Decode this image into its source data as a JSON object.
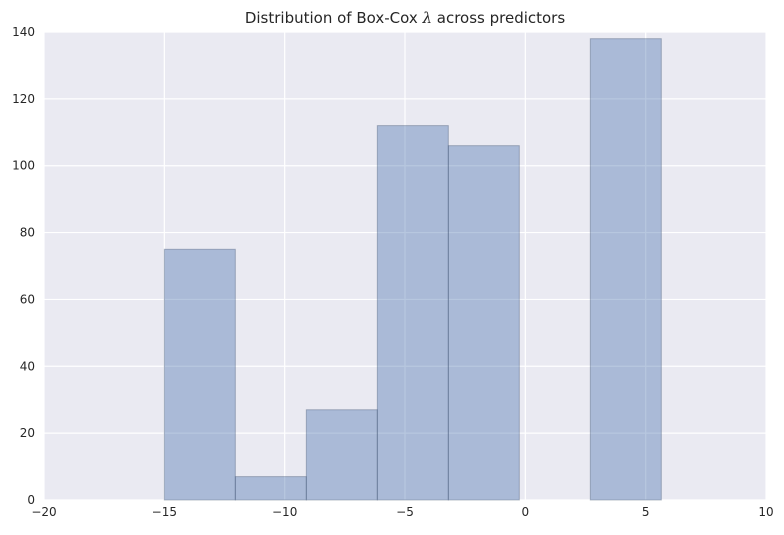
{
  "chart_data": {
    "type": "bar",
    "title_prefix": "Distribution of Box-Cox ",
    "title_symbol": "λ",
    "title_suffix": " across predictors",
    "xlabel": "",
    "ylabel": "",
    "xlim": [
      -20,
      10
    ],
    "ylim": [
      0,
      140
    ],
    "xticks": [
      -20,
      -15,
      -10,
      -5,
      0,
      5,
      10
    ],
    "xtick_labels": [
      "−20",
      "−15",
      "−10",
      "−5",
      "0",
      "5",
      "10"
    ],
    "yticks": [
      0,
      20,
      40,
      60,
      80,
      100,
      120,
      140
    ],
    "ytick_labels": [
      "0",
      "20",
      "40",
      "60",
      "80",
      "100",
      "120",
      "140"
    ],
    "bins": [
      {
        "start": -15.0,
        "end": -12.05,
        "count": 75
      },
      {
        "start": -12.05,
        "end": -9.1,
        "count": 7
      },
      {
        "start": -9.1,
        "end": -6.15,
        "count": 27
      },
      {
        "start": -6.15,
        "end": -3.2,
        "count": 112
      },
      {
        "start": -3.2,
        "end": -0.25,
        "count": 106
      },
      {
        "start": -0.25,
        "end": 2.7,
        "count": 0
      },
      {
        "start": 2.7,
        "end": 5.65,
        "count": 138
      }
    ],
    "grid": true,
    "bar_color": "#4c72b0",
    "background_color": "#eaeaf2"
  }
}
